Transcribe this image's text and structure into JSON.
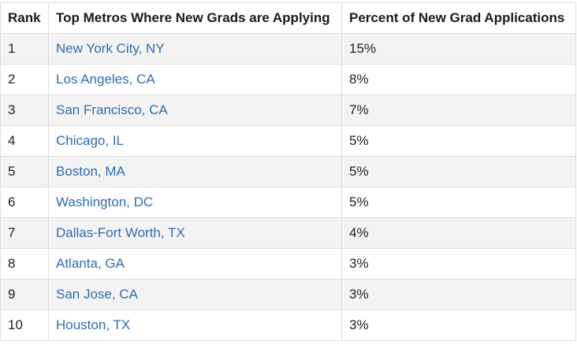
{
  "table": {
    "headers": {
      "rank": "Rank",
      "metro": "Top Metros Where New Grads are Applying",
      "percent": "Percent of New Grad Applications"
    },
    "rows": [
      {
        "rank": "1",
        "metro": "New York City, NY",
        "percent": "15%"
      },
      {
        "rank": "2",
        "metro": "Los Angeles, CA",
        "percent": "8%"
      },
      {
        "rank": "3",
        "metro": "San Francisco, CA",
        "percent": "7%"
      },
      {
        "rank": "4",
        "metro": "Chicago, IL",
        "percent": "5%"
      },
      {
        "rank": "5",
        "metro": "Boston, MA",
        "percent": "5%"
      },
      {
        "rank": "6",
        "metro": "Washington, DC",
        "percent": "5%"
      },
      {
        "rank": "7",
        "metro": "Dallas-Fort Worth, TX",
        "percent": "4%"
      },
      {
        "rank": "8",
        "metro": "Atlanta, GA",
        "percent": "3%"
      },
      {
        "rank": "9",
        "metro": "San Jose, CA",
        "percent": "3%"
      },
      {
        "rank": "10",
        "metro": "Houston, TX",
        "percent": "3%"
      }
    ]
  },
  "colors": {
    "link": "#2e6db0",
    "stripe": "#f3f3f3",
    "border": "#dedede"
  }
}
